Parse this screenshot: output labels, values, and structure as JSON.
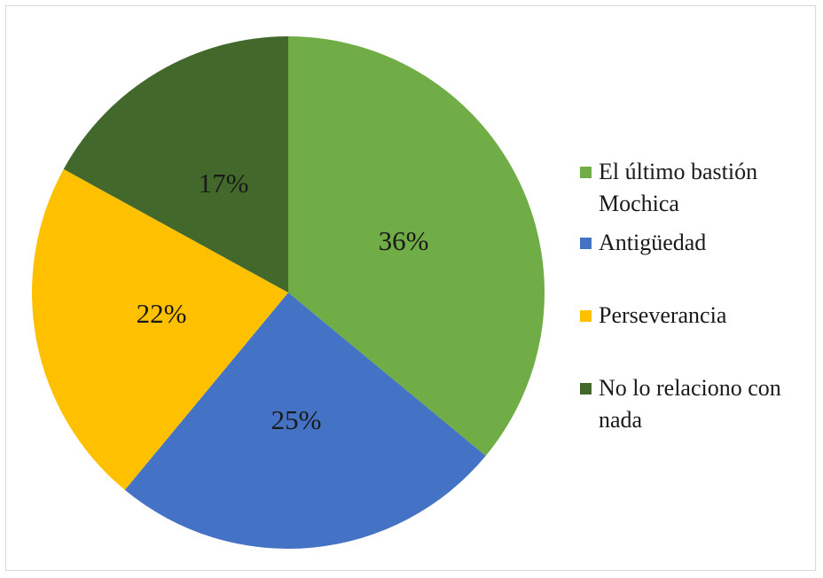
{
  "chart_data": {
    "type": "pie",
    "title": "",
    "slices": [
      {
        "label": "El último bastión Mochica",
        "value": 36,
        "display": "36%",
        "color": "#70ad47"
      },
      {
        "label": "Antigüedad",
        "value": 25,
        "display": "25%",
        "color": "#4472c4"
      },
      {
        "label": "Perseverancia",
        "value": 22,
        "display": "22%",
        "color": "#ffc000"
      },
      {
        "label": "No lo relaciono con nada",
        "value": 17,
        "display": "17%",
        "color": "#43682b"
      }
    ],
    "legend_position": "right"
  },
  "legend": {
    "items": [
      {
        "label": "El último bastión Mochica",
        "color": "#70ad47"
      },
      {
        "label": "Antigüedad",
        "color": "#4472c4"
      },
      {
        "label": "Perseverancia",
        "color": "#ffc000"
      },
      {
        "label": "No lo relaciono con nada",
        "color": "#43682b"
      }
    ]
  }
}
